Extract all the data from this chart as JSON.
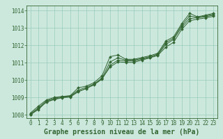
{
  "background_color": "#cce8dd",
  "grid_color": "#99ccbb",
  "line_color": "#336633",
  "marker_color": "#336633",
  "title": "Graphe pression niveau de la mer (hPa)",
  "title_fontsize": 7,
  "tick_color": "#336633",
  "tick_fontsize": 5.5,
  "xlim": [
    -0.5,
    23.5
  ],
  "ylim": [
    1007.8,
    1014.3
  ],
  "yticks": [
    1008,
    1009,
    1010,
    1011,
    1012,
    1013,
    1014
  ],
  "xticks": [
    0,
    1,
    2,
    3,
    4,
    5,
    6,
    7,
    8,
    9,
    10,
    11,
    12,
    13,
    14,
    15,
    16,
    17,
    18,
    19,
    20,
    21,
    22,
    23
  ],
  "series": [
    [
      1008.1,
      1008.5,
      1008.85,
      1009.0,
      1009.05,
      1009.1,
      1009.55,
      1009.65,
      1009.85,
      1010.25,
      1011.35,
      1011.45,
      1011.2,
      1011.2,
      1011.3,
      1011.4,
      1011.55,
      1012.25,
      1012.5,
      1013.25,
      1013.85,
      1013.65,
      1013.75,
      1013.85
    ],
    [
      1008.0,
      1008.3,
      1008.75,
      1008.9,
      1009.0,
      1009.05,
      1009.35,
      1009.5,
      1009.75,
      1010.05,
      1010.85,
      1011.15,
      1011.1,
      1011.1,
      1011.2,
      1011.3,
      1011.45,
      1012.05,
      1012.35,
      1013.05,
      1013.55,
      1013.6,
      1013.65,
      1013.75
    ],
    [
      1008.05,
      1008.4,
      1008.8,
      1008.95,
      1009.05,
      1009.08,
      1009.42,
      1009.58,
      1009.78,
      1010.12,
      1011.05,
      1011.28,
      1011.15,
      1011.15,
      1011.25,
      1011.35,
      1011.5,
      1012.15,
      1012.42,
      1013.15,
      1013.7,
      1013.62,
      1013.7,
      1013.8
    ],
    [
      1008.0,
      1008.35,
      1008.72,
      1008.88,
      1008.98,
      1009.02,
      1009.32,
      1009.52,
      1009.72,
      1010.08,
      1010.75,
      1011.05,
      1011.02,
      1011.02,
      1011.15,
      1011.28,
      1011.42,
      1011.9,
      1012.18,
      1012.92,
      1013.42,
      1013.52,
      1013.58,
      1013.68
    ]
  ]
}
